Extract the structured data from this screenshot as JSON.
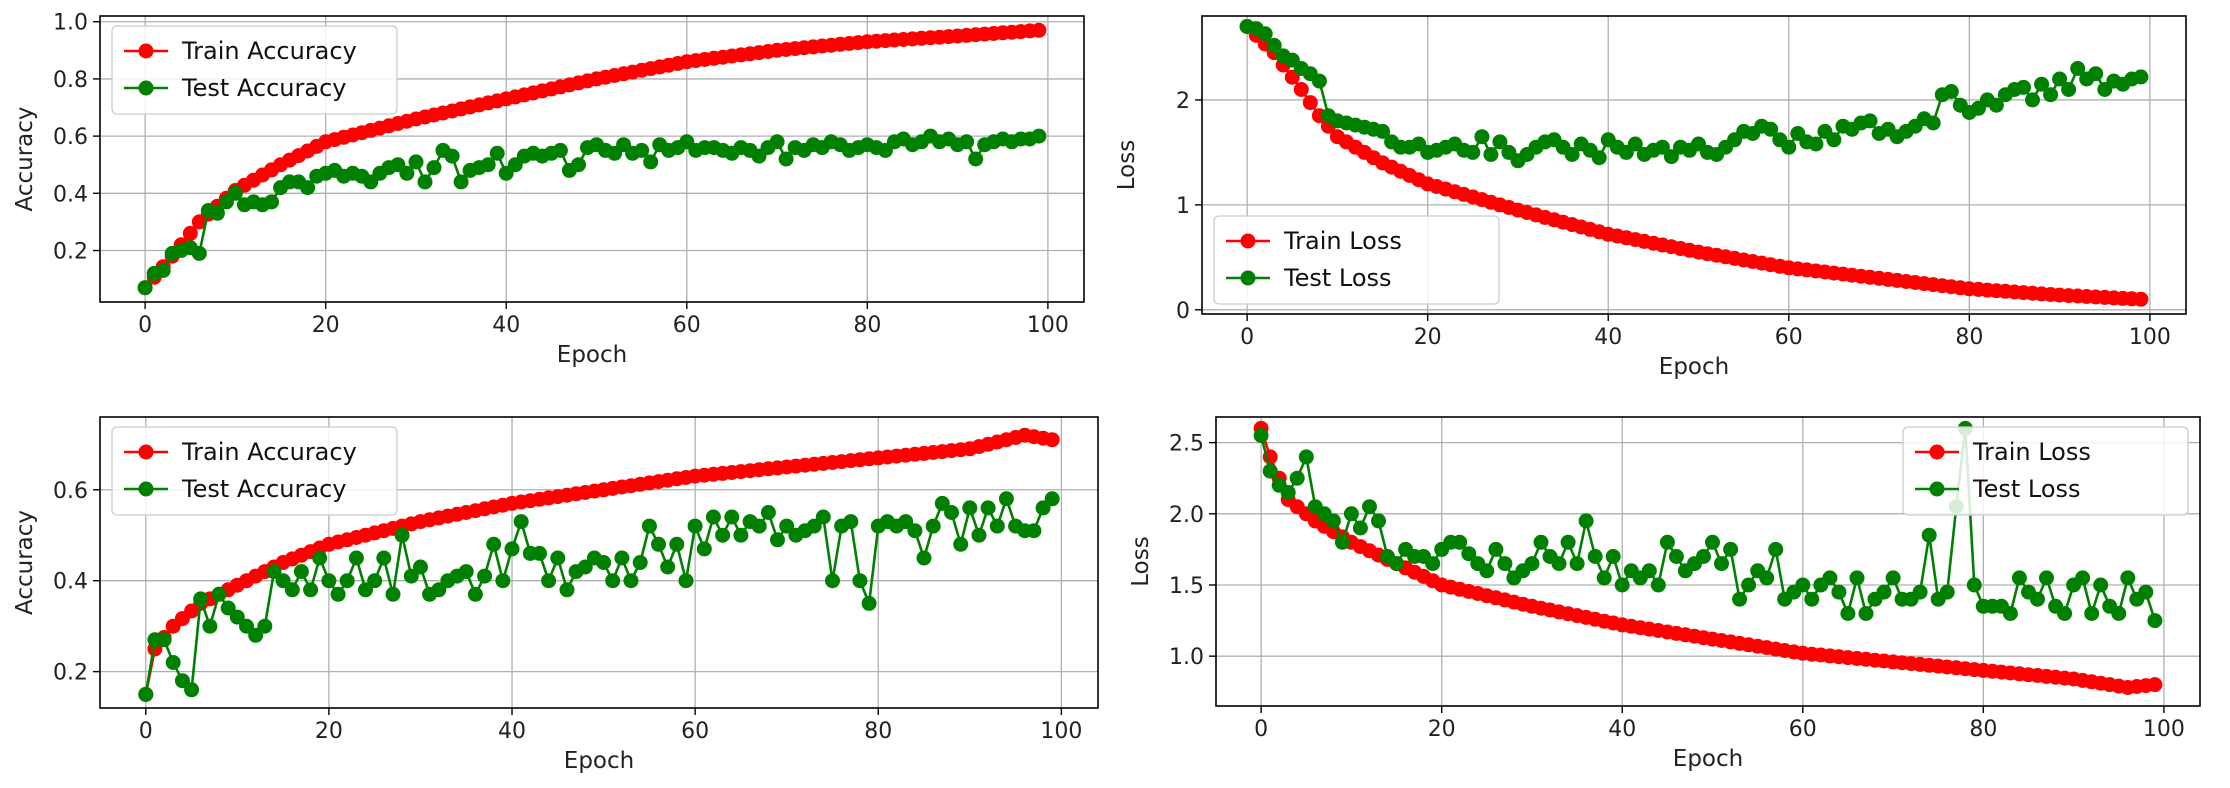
{
  "chart_data": [
    {
      "type": "line",
      "title": "",
      "xlabel": "Epoch",
      "ylabel": "Accuracy",
      "xlim": [
        -5,
        104
      ],
      "ylim": [
        0.02,
        1.02
      ],
      "xticks": [
        0,
        20,
        40,
        60,
        80,
        100
      ],
      "yticks": [
        0.2,
        0.4,
        0.6,
        0.8,
        1.0
      ],
      "ytick_labels": [
        "0.2",
        "0.4",
        "0.6",
        "0.8",
        "1.0"
      ],
      "grid": true,
      "legend_position": "upper-left",
      "series": [
        {
          "name": "Train Accuracy",
          "color": "#ff0000",
          "anchors": [
            [
              0,
              0.07
            ],
            [
              3,
              0.18
            ],
            [
              6,
              0.3
            ],
            [
              10,
              0.41
            ],
            [
              15,
              0.5
            ],
            [
              20,
              0.58
            ],
            [
              30,
              0.66
            ],
            [
              40,
              0.73
            ],
            [
              50,
              0.8
            ],
            [
              60,
              0.86
            ],
            [
              70,
              0.9
            ],
            [
              80,
              0.93
            ],
            [
              90,
              0.95
            ],
            [
              99,
              0.97
            ]
          ]
        },
        {
          "name": "Test Accuracy",
          "color": "#008000",
          "values": [
            0.07,
            0.12,
            0.13,
            0.19,
            0.2,
            0.21,
            0.19,
            0.34,
            0.33,
            0.37,
            0.4,
            0.36,
            0.37,
            0.36,
            0.37,
            0.42,
            0.44,
            0.44,
            0.42,
            0.46,
            0.47,
            0.48,
            0.46,
            0.47,
            0.46,
            0.44,
            0.47,
            0.49,
            0.5,
            0.47,
            0.51,
            0.44,
            0.49,
            0.55,
            0.53,
            0.44,
            0.48,
            0.49,
            0.5,
            0.54,
            0.47,
            0.5,
            0.53,
            0.54,
            0.53,
            0.54,
            0.55,
            0.48,
            0.5,
            0.56,
            0.57,
            0.55,
            0.54,
            0.57,
            0.54,
            0.55,
            0.51,
            0.57,
            0.55,
            0.56,
            0.58,
            0.55,
            0.56,
            0.56,
            0.55,
            0.54,
            0.56,
            0.55,
            0.53,
            0.56,
            0.58,
            0.52,
            0.56,
            0.55,
            0.57,
            0.56,
            0.58,
            0.57,
            0.55,
            0.56,
            0.57,
            0.56,
            0.55,
            0.58,
            0.59,
            0.57,
            0.58,
            0.6,
            0.58,
            0.59,
            0.57,
            0.58,
            0.52,
            0.57,
            0.58,
            0.59,
            0.58,
            0.59,
            0.59,
            0.6
          ]
        }
      ]
    },
    {
      "type": "line",
      "title": "",
      "xlabel": "Epoch",
      "ylabel": "Loss",
      "xlim": [
        -5,
        104
      ],
      "ylim": [
        -0.04,
        2.8
      ],
      "xticks": [
        0,
        20,
        40,
        60,
        80,
        100
      ],
      "yticks": [
        0,
        1,
        2
      ],
      "ytick_labels": [
        "0",
        "1",
        "2"
      ],
      "grid": true,
      "legend_position": "lower-left",
      "series": [
        {
          "name": "Train Loss",
          "color": "#ff0000",
          "anchors": [
            [
              0,
              2.7
            ],
            [
              3,
              2.45
            ],
            [
              6,
              2.1
            ],
            [
              8,
              1.85
            ],
            [
              10,
              1.65
            ],
            [
              15,
              1.4
            ],
            [
              20,
              1.2
            ],
            [
              30,
              0.95
            ],
            [
              40,
              0.72
            ],
            [
              50,
              0.55
            ],
            [
              60,
              0.4
            ],
            [
              70,
              0.3
            ],
            [
              80,
              0.2
            ],
            [
              90,
              0.14
            ],
            [
              99,
              0.1
            ]
          ]
        },
        {
          "name": "Test Loss",
          "color": "#008000",
          "values": [
            2.7,
            2.68,
            2.63,
            2.52,
            2.42,
            2.38,
            2.3,
            2.25,
            2.18,
            1.85,
            1.8,
            1.78,
            1.76,
            1.74,
            1.72,
            1.7,
            1.6,
            1.55,
            1.55,
            1.58,
            1.5,
            1.52,
            1.55,
            1.58,
            1.52,
            1.5,
            1.65,
            1.48,
            1.6,
            1.5,
            1.42,
            1.48,
            1.55,
            1.6,
            1.62,
            1.55,
            1.48,
            1.58,
            1.52,
            1.45,
            1.62,
            1.55,
            1.5,
            1.58,
            1.48,
            1.52,
            1.55,
            1.46,
            1.55,
            1.52,
            1.58,
            1.5,
            1.48,
            1.55,
            1.62,
            1.7,
            1.68,
            1.75,
            1.72,
            1.62,
            1.55,
            1.68,
            1.6,
            1.58,
            1.7,
            1.62,
            1.75,
            1.72,
            1.78,
            1.8,
            1.68,
            1.72,
            1.65,
            1.7,
            1.75,
            1.82,
            1.78,
            2.05,
            2.08,
            1.95,
            1.88,
            1.92,
            2.0,
            1.95,
            2.05,
            2.1,
            2.12,
            2.0,
            2.15,
            2.05,
            2.2,
            2.1,
            2.3,
            2.2,
            2.25,
            2.1,
            2.18,
            2.15,
            2.2,
            2.22
          ]
        }
      ]
    },
    {
      "type": "line",
      "title": "",
      "xlabel": "Epoch",
      "ylabel": "Accuracy",
      "xlim": [
        -5,
        104
      ],
      "ylim": [
        0.12,
        0.76
      ],
      "xticks": [
        0,
        20,
        40,
        60,
        80,
        100
      ],
      "yticks": [
        0.2,
        0.4,
        0.6
      ],
      "ytick_labels": [
        "0.2",
        "0.4",
        "0.6"
      ],
      "grid": true,
      "legend_position": "upper-left",
      "series": [
        {
          "name": "Train Accuracy",
          "color": "#ff0000",
          "anchors": [
            [
              0,
              0.15
            ],
            [
              1,
              0.25
            ],
            [
              3,
              0.3
            ],
            [
              6,
              0.35
            ],
            [
              10,
              0.39
            ],
            [
              15,
              0.44
            ],
            [
              20,
              0.48
            ],
            [
              30,
              0.53
            ],
            [
              40,
              0.57
            ],
            [
              50,
              0.6
            ],
            [
              60,
              0.63
            ],
            [
              70,
              0.65
            ],
            [
              80,
              0.67
            ],
            [
              90,
              0.69
            ],
            [
              96,
              0.72
            ],
            [
              99,
              0.71
            ]
          ]
        },
        {
          "name": "Test Accuracy",
          "color": "#008000",
          "values": [
            0.15,
            0.27,
            0.27,
            0.22,
            0.18,
            0.16,
            0.36,
            0.3,
            0.37,
            0.34,
            0.32,
            0.3,
            0.28,
            0.3,
            0.42,
            0.4,
            0.38,
            0.42,
            0.38,
            0.45,
            0.4,
            0.37,
            0.4,
            0.45,
            0.38,
            0.4,
            0.45,
            0.37,
            0.5,
            0.41,
            0.43,
            0.37,
            0.38,
            0.4,
            0.41,
            0.42,
            0.37,
            0.41,
            0.48,
            0.4,
            0.47,
            0.53,
            0.46,
            0.46,
            0.4,
            0.45,
            0.38,
            0.42,
            0.43,
            0.45,
            0.44,
            0.4,
            0.45,
            0.4,
            0.44,
            0.52,
            0.48,
            0.43,
            0.48,
            0.4,
            0.52,
            0.47,
            0.54,
            0.5,
            0.54,
            0.5,
            0.53,
            0.52,
            0.55,
            0.49,
            0.52,
            0.5,
            0.51,
            0.52,
            0.54,
            0.4,
            0.52,
            0.53,
            0.4,
            0.35,
            0.52,
            0.53,
            0.52,
            0.53,
            0.51,
            0.45,
            0.52,
            0.57,
            0.55,
            0.48,
            0.56,
            0.5,
            0.56,
            0.52,
            0.58,
            0.52,
            0.51,
            0.51,
            0.56,
            0.58
          ]
        }
      ]
    },
    {
      "type": "line",
      "title": "",
      "xlabel": "Epoch",
      "ylabel": "Loss",
      "xlim": [
        -5,
        104
      ],
      "ylim": [
        0.65,
        2.68
      ],
      "xticks": [
        0,
        20,
        40,
        60,
        80,
        100
      ],
      "yticks": [
        1.0,
        1.5,
        2.0,
        2.5
      ],
      "ytick_labels": [
        "1.0",
        "1.5",
        "2.0",
        "2.5"
      ],
      "grid": true,
      "legend_position": "upper-right",
      "series": [
        {
          "name": "Train Loss",
          "color": "#ff0000",
          "anchors": [
            [
              0,
              2.6
            ],
            [
              1,
              2.4
            ],
            [
              3,
              2.1
            ],
            [
              6,
              1.95
            ],
            [
              10,
              1.8
            ],
            [
              15,
              1.65
            ],
            [
              20,
              1.5
            ],
            [
              30,
              1.35
            ],
            [
              40,
              1.22
            ],
            [
              50,
              1.12
            ],
            [
              60,
              1.02
            ],
            [
              70,
              0.96
            ],
            [
              80,
              0.9
            ],
            [
              90,
              0.84
            ],
            [
              96,
              0.78
            ],
            [
              99,
              0.8
            ]
          ]
        },
        {
          "name": "Test Loss",
          "color": "#008000",
          "values": [
            2.55,
            2.3,
            2.2,
            2.15,
            2.25,
            2.4,
            2.05,
            2.0,
            1.95,
            1.8,
            2.0,
            1.9,
            2.05,
            1.95,
            1.7,
            1.65,
            1.75,
            1.7,
            1.7,
            1.65,
            1.75,
            1.8,
            1.8,
            1.72,
            1.65,
            1.6,
            1.75,
            1.65,
            1.55,
            1.6,
            1.65,
            1.8,
            1.7,
            1.65,
            1.8,
            1.65,
            1.95,
            1.7,
            1.55,
            1.7,
            1.5,
            1.6,
            1.55,
            1.6,
            1.5,
            1.8,
            1.7,
            1.6,
            1.65,
            1.7,
            1.8,
            1.65,
            1.75,
            1.4,
            1.5,
            1.6,
            1.55,
            1.75,
            1.4,
            1.45,
            1.5,
            1.4,
            1.5,
            1.55,
            1.45,
            1.3,
            1.55,
            1.3,
            1.4,
            1.45,
            1.55,
            1.4,
            1.4,
            1.45,
            1.85,
            1.4,
            1.45,
            2.05,
            2.6,
            1.5,
            1.35,
            1.35,
            1.35,
            1.3,
            1.55,
            1.45,
            1.4,
            1.55,
            1.35,
            1.3,
            1.5,
            1.55,
            1.3,
            1.5,
            1.35,
            1.3,
            1.55,
            1.4,
            1.45,
            1.25
          ]
        }
      ]
    }
  ]
}
